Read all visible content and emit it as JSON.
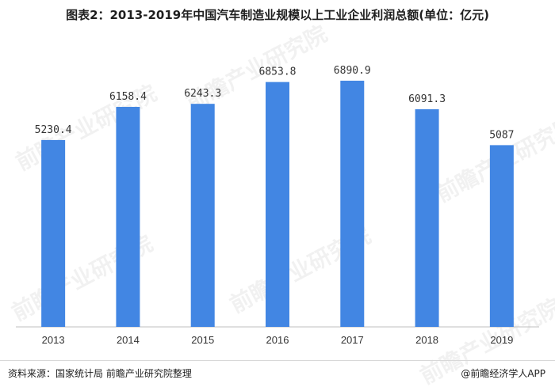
{
  "title": "图表2：2013-2019年中国汽车制造业规模以上工业企业利润总额(单位：亿元)",
  "footer": {
    "source": "资料来源：国家统计局 前瞻产业研究院整理",
    "brand": "@前瞻经济学人APP"
  },
  "watermark": "前瞻产业研究院",
  "colors": {
    "bar": "#4286e3",
    "axis": "#bfbfbf"
  },
  "chart_data": {
    "type": "bar",
    "title": "图表2：2013-2019年中国汽车制造业规模以上工业企业利润总额(单位：亿元)",
    "categories": [
      "2013",
      "2014",
      "2015",
      "2016",
      "2017",
      "2018",
      "2019"
    ],
    "values": [
      5230.4,
      6158.4,
      6243.3,
      6853.8,
      6890.9,
      6091.3,
      5087
    ],
    "value_labels": [
      "5230.4",
      "6158.4",
      "6243.3",
      "6853.8",
      "6890.9",
      "6091.3",
      "5087"
    ],
    "xlabel": "",
    "ylabel": "",
    "ylim": [
      0,
      7200
    ],
    "grid": false,
    "legend": "none"
  }
}
